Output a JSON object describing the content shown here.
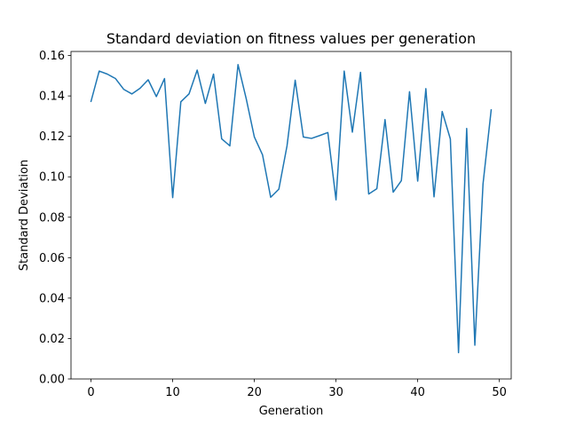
{
  "chart_data": {
    "type": "line",
    "title": "Standard deviation on fitness values per generation",
    "xlabel": "Generation",
    "ylabel": "Standard Deviation",
    "xlim": [
      -2.45,
      51.45
    ],
    "ylim": [
      0.0,
      0.162
    ],
    "xticks": [
      0,
      10,
      20,
      30,
      40,
      50
    ],
    "xtick_labels": [
      "0",
      "10",
      "20",
      "30",
      "40",
      "50"
    ],
    "yticks": [
      0.0,
      0.02,
      0.04,
      0.06,
      0.08,
      0.1,
      0.12,
      0.14,
      0.16
    ],
    "ytick_labels": [
      "0.00",
      "0.02",
      "0.04",
      "0.06",
      "0.08",
      "0.10",
      "0.12",
      "0.14",
      "0.16"
    ],
    "grid": false,
    "line_color": "#1f77b4",
    "series": [
      {
        "x": [
          0,
          1,
          2,
          3,
          4,
          5,
          6,
          7,
          8,
          9,
          10,
          11,
          12,
          13,
          14,
          15,
          16,
          17,
          18,
          19,
          20,
          21,
          22,
          23,
          24,
          25,
          26,
          27,
          28,
          29,
          30,
          31,
          32,
          33,
          34,
          35,
          36,
          37,
          38,
          39,
          40,
          41,
          42,
          43,
          44,
          45,
          46,
          47,
          48,
          49
        ],
        "values": [
          0.1373,
          0.1523,
          0.1508,
          0.1486,
          0.1433,
          0.141,
          0.1438,
          0.148,
          0.1397,
          0.1486,
          0.0897,
          0.1371,
          0.141,
          0.1528,
          0.1363,
          0.1508,
          0.1188,
          0.1153,
          0.1555,
          0.1387,
          0.1197,
          0.1109,
          0.0899,
          0.0939,
          0.1153,
          0.1478,
          0.1197,
          0.119,
          0.1204,
          0.1219,
          0.0886,
          0.1523,
          0.1221,
          0.1517,
          0.0915,
          0.0941,
          0.1283,
          0.0924,
          0.0981,
          0.1421,
          0.0979,
          0.1436,
          0.0901,
          0.1323,
          0.1187,
          0.013,
          0.1239,
          0.0167,
          0.0965,
          0.1331
        ]
      }
    ]
  }
}
